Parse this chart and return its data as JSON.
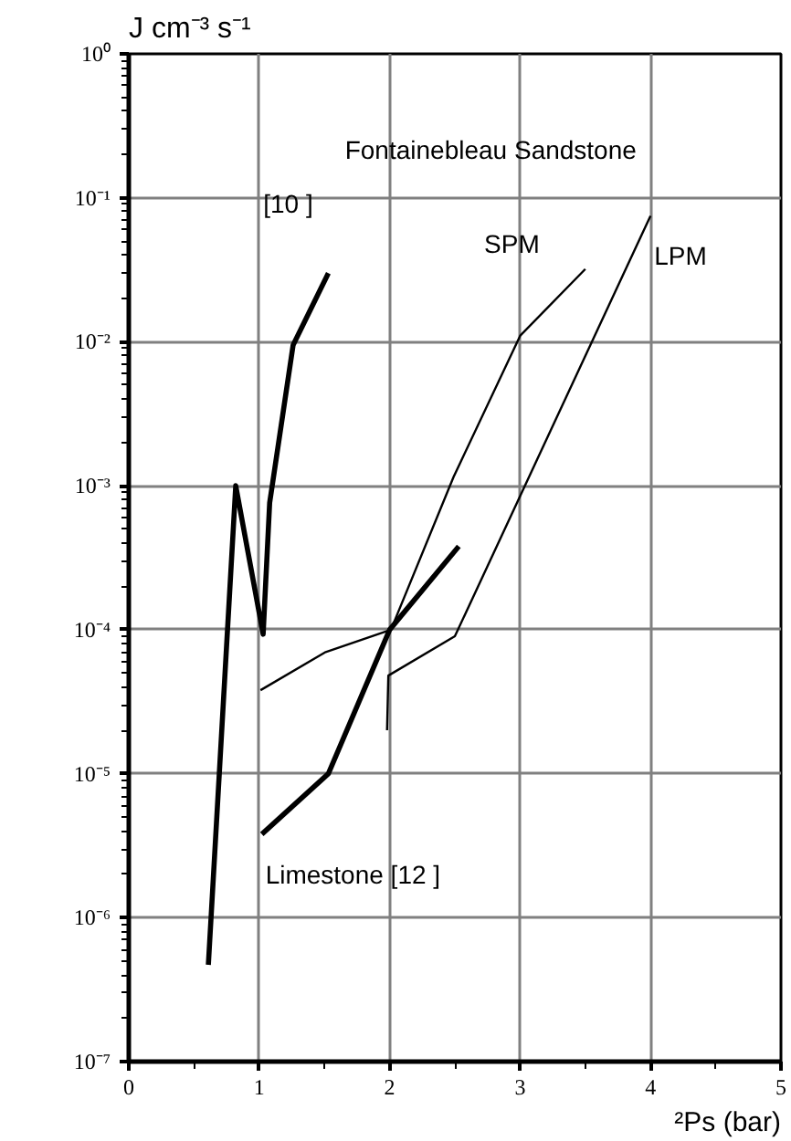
{
  "chart_data": {
    "type": "line",
    "ylabel": "J cm⁻³ s⁻¹",
    "xlabel": "²Ps (bar)",
    "log": "y",
    "grid": true,
    "legend": false,
    "marker": "none",
    "line_style": "solid",
    "xlim": [
      0,
      5
    ],
    "xticks": [
      0,
      1,
      2,
      3,
      4,
      5
    ],
    "ylim": [
      1e-07,
      1
    ],
    "yticks": [
      {
        "value": 1e-07,
        "label": "10⁻⁷"
      },
      {
        "value": 1e-06,
        "label": "10⁻⁶"
      },
      {
        "value": 1e-05,
        "label": "10⁻⁵"
      },
      {
        "value": 0.0001,
        "label": "10⁻⁴"
      },
      {
        "value": 0.001,
        "label": "10⁻³"
      },
      {
        "value": 0.01,
        "label": "10⁻²"
      },
      {
        "value": 0.1,
        "label": "10⁻¹"
      },
      {
        "value": 1,
        "label": "10⁰"
      }
    ],
    "series": [
      {
        "name": "[10 ]",
        "color": "#000000",
        "x": [
          0.61,
          0.82,
          1.03,
          1.08,
          1.26,
          1.53
        ],
        "values": [
          4.7e-07,
          0.001,
          9.3e-05,
          0.00076,
          0.0095,
          0.03
        ]
      },
      {
        "name": "SPM",
        "color": "#000000",
        "x": [
          1.01,
          1.51,
          2.01,
          2.49,
          3.0,
          3.5
        ],
        "values": [
          3.8e-05,
          7e-05,
          0.0001,
          0.00115,
          0.011,
          0.032
        ]
      },
      {
        "name": "LPM",
        "color": "#000000",
        "x": [
          1.98,
          1.99,
          2.5,
          4.0
        ],
        "values": [
          2e-05,
          4.8e-05,
          9e-05,
          0.075
        ]
      },
      {
        "name": "Limestone [12 ]",
        "color": "#000000",
        "x": [
          1.02,
          1.53,
          2.0,
          2.53
        ],
        "values": [
          3.8e-06,
          1e-05,
          0.0001,
          0.00038
        ]
      }
    ],
    "annotations": [
      "Fontainebleau Sandstone"
    ]
  }
}
